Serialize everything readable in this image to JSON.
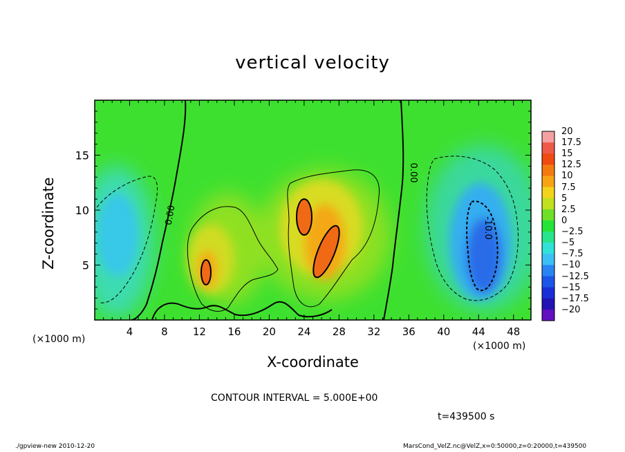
{
  "title": "vertical velocity",
  "contour_interval": "CONTOUR INTERVAL = 5.000E+00",
  "time_label": "t=439500 s",
  "footer_left": "./gpview-new   2010-12-20",
  "footer_right": "MarsCond_VelZ.nc@VelZ,x=0:50000,z=0:20000,t=439500",
  "x_unit_left": "(×1000 m)",
  "x_unit_right": "(×1000 m)",
  "chart_data": {
    "type": "heatmap",
    "title": "vertical velocity",
    "xlabel": "X-coordinate",
    "ylabel": "Z-coordinate",
    "xlim": [
      0,
      50
    ],
    "ylim": [
      0,
      20
    ],
    "x_unit": "×1000 m",
    "y_unit": "×1000 m",
    "x_ticks": [
      4,
      8,
      12,
      16,
      20,
      24,
      28,
      32,
      36,
      40,
      44,
      48
    ],
    "y_ticks": [
      5,
      10,
      15
    ],
    "grid": false,
    "colorbar": {
      "levels": [
        20,
        17.5,
        15,
        12.5,
        10,
        7.5,
        5,
        2.5,
        0,
        -2.5,
        -5,
        -7.5,
        -10,
        -12.5,
        -15,
        -17.5,
        -20
      ],
      "colors": [
        "#f4a0a0",
        "#ee5a4a",
        "#f04a10",
        "#f47a10",
        "#f7a414",
        "#f2d41c",
        "#c0e020",
        "#6ee028",
        "#24e438",
        "#28e48a",
        "#30e2d8",
        "#3ac0f4",
        "#2a84f4",
        "#1c56e8",
        "#1a2ed8",
        "#2214b4",
        "#6210c0"
      ]
    },
    "contour_labels": [
      "0.00",
      "0.00",
      "-10.0"
    ],
    "features": [
      {
        "kind": "updraft",
        "x": 13,
        "z": 4.2,
        "value": 12.5
      },
      {
        "kind": "updraft",
        "x": 24.2,
        "z": 9.2,
        "value": 12.5
      },
      {
        "kind": "updraft",
        "x": 26.8,
        "z": 6.2,
        "value": 12.5
      },
      {
        "kind": "downdraft",
        "x": 44.5,
        "z": 6.5,
        "value": -12.5
      },
      {
        "kind": "downdraft",
        "x": 2.5,
        "z": 8.5,
        "value": -7.5
      }
    ]
  }
}
